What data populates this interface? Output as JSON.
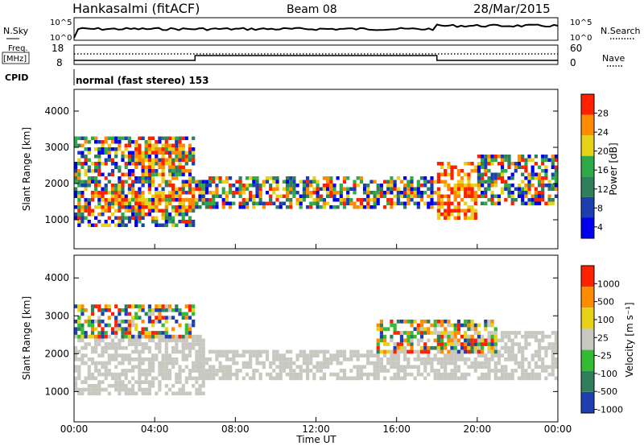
{
  "header": {
    "station": "Hankasalmi (fitACF)",
    "beam": "Beam 08",
    "date": "28/Mar/2015"
  },
  "noise_panel": {
    "left_label": "N.Sky",
    "right_label": "N.Search",
    "left_ticks": [
      "10^5",
      "10^0"
    ],
    "right_ticks": [
      "10^5",
      "10^0"
    ]
  },
  "freq_panel": {
    "left_label_1": "Freq.",
    "left_label_2": "[MHz]",
    "left_ticks": [
      "18",
      "8"
    ],
    "right_label": "Nave",
    "right_ticks": [
      "60",
      "0"
    ]
  },
  "cpid": {
    "label": "CPID",
    "text": "normal (fast stereo) 153"
  },
  "time_axis": {
    "label": "Time UT",
    "ticks": [
      "00:00",
      "04:00",
      "08:00",
      "12:00",
      "16:00",
      "20:00",
      "00:00"
    ]
  },
  "chart_data": [
    {
      "type": "heatmap",
      "title": "",
      "xlabel": "Time UT",
      "ylabel": "Slant Range [km]",
      "ylim": [
        200,
        4600
      ],
      "yticks": [
        "1000",
        "2000",
        "3000",
        "4000"
      ],
      "colorbar": {
        "label": "Power [dB]",
        "ticks": [
          "28",
          "24",
          "20",
          "16",
          "12",
          "8",
          "4"
        ],
        "range": [
          0,
          32
        ],
        "colors": [
          "#0000ee",
          "#1c3fb0",
          "#2f7f5a",
          "#2faa48",
          "#e6d219",
          "#ff8c00",
          "#ff2000"
        ]
      },
      "bands": [
        {
          "t0": 0.0,
          "t1": 6.0,
          "r0": 800,
          "r1": 3300,
          "level": "mixed"
        },
        {
          "t0": 1.0,
          "t1": 6.0,
          "r0": 1200,
          "r1": 1800,
          "level": "high"
        },
        {
          "t0": 3.0,
          "t1": 5.5,
          "r0": 2400,
          "r1": 3100,
          "level": "high"
        },
        {
          "t0": 6.0,
          "t1": 18.0,
          "r0": 1300,
          "r1": 2200,
          "level": "mixed"
        },
        {
          "t0": 18.0,
          "t1": 20.0,
          "r0": 1000,
          "r1": 2600,
          "level": "high"
        },
        {
          "t0": 20.0,
          "t1": 24.0,
          "r0": 1400,
          "r1": 2800,
          "level": "mixed"
        }
      ]
    },
    {
      "type": "heatmap",
      "title": "",
      "xlabel": "Time UT",
      "ylabel": "Slant Range [km]",
      "ylim": [
        200,
        4600
      ],
      "yticks": [
        "1000",
        "2000",
        "3000",
        "4000"
      ],
      "colorbar": {
        "label": "Velocity [m s⁻¹]",
        "ticks": [
          "1000",
          "500",
          "100",
          "25",
          "-25",
          "-100",
          "-500",
          "-1000"
        ],
        "range": [
          -1200,
          1200
        ],
        "colors": [
          "#1f3fb0",
          "#2f7f5a",
          "#33bb33",
          "#c8c8c0",
          "#e6d219",
          "#ff8c00",
          "#ff2000"
        ]
      },
      "bands": [
        {
          "t0": 0.0,
          "t1": 6.5,
          "r0": 900,
          "r1": 2500,
          "level": "ground"
        },
        {
          "t0": 0.0,
          "t1": 6.0,
          "r0": 2400,
          "r1": 3300,
          "level": "mixed"
        },
        {
          "t0": 6.0,
          "t1": 18.0,
          "r0": 1300,
          "r1": 2100,
          "level": "ground"
        },
        {
          "t0": 18.0,
          "t1": 24.0,
          "r0": 1300,
          "r1": 2600,
          "level": "ground"
        },
        {
          "t0": 15.0,
          "t1": 21.0,
          "r0": 2000,
          "r1": 2900,
          "level": "mixed"
        }
      ]
    }
  ]
}
